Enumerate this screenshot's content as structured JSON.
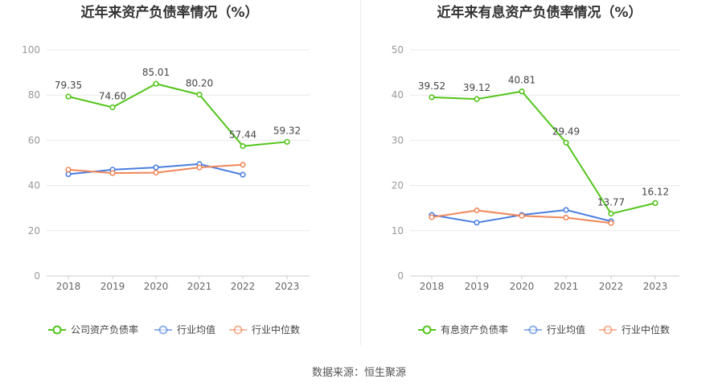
{
  "footer": {
    "source": "数据来源：恒生聚源"
  },
  "colors": {
    "company": "#52c41a",
    "industry_avg": "#4a7ee0",
    "industry_median": "#f0875a",
    "grid": "#e8e8ec",
    "axis": "#999999",
    "title": "#333333"
  },
  "chart_data": [
    {
      "type": "line",
      "title": "近年来资产负债率情况（%）",
      "x": [
        "2018",
        "2019",
        "2020",
        "2021",
        "2022",
        "2023"
      ],
      "ylim": [
        0,
        100
      ],
      "yticks": [
        0,
        20,
        40,
        60,
        80,
        100
      ],
      "grid": true,
      "legend_position": "bottom",
      "series": [
        {
          "name": "公司资产负债率",
          "color": "#52c41a",
          "values": [
            79.35,
            74.6,
            85.01,
            80.2,
            57.44,
            59.32
          ],
          "labels": [
            "79.35",
            "74.60",
            "85.01",
            "80.20",
            "57.44",
            "59.32"
          ]
        },
        {
          "name": "行业均值",
          "color": "#4a7ee0",
          "values": [
            45.0,
            47.0,
            48.0,
            49.5,
            44.8,
            null
          ]
        },
        {
          "name": "行业中位数",
          "color": "#f0875a",
          "values": [
            47.0,
            45.5,
            45.7,
            48.0,
            49.2,
            null
          ]
        }
      ]
    },
    {
      "type": "line",
      "title": "近年来有息资产负债率情况（%）",
      "x": [
        "2018",
        "2019",
        "2020",
        "2021",
        "2022",
        "2023"
      ],
      "ylim": [
        0,
        50
      ],
      "yticks": [
        0,
        10,
        20,
        30,
        40,
        50
      ],
      "grid": true,
      "legend_position": "bottom",
      "series": [
        {
          "name": "有息资产负债率",
          "color": "#52c41a",
          "values": [
            39.52,
            39.12,
            40.81,
            29.49,
            13.77,
            16.12
          ],
          "labels": [
            "39.52",
            "39.12",
            "40.81",
            "29.49",
            "13.77",
            "16.12"
          ]
        },
        {
          "name": "行业均值",
          "color": "#4a7ee0",
          "values": [
            13.5,
            11.8,
            13.5,
            14.6,
            12.1,
            null
          ]
        },
        {
          "name": "行业中位数",
          "color": "#f0875a",
          "values": [
            13.0,
            14.5,
            13.3,
            12.9,
            11.7,
            null
          ]
        }
      ]
    }
  ]
}
